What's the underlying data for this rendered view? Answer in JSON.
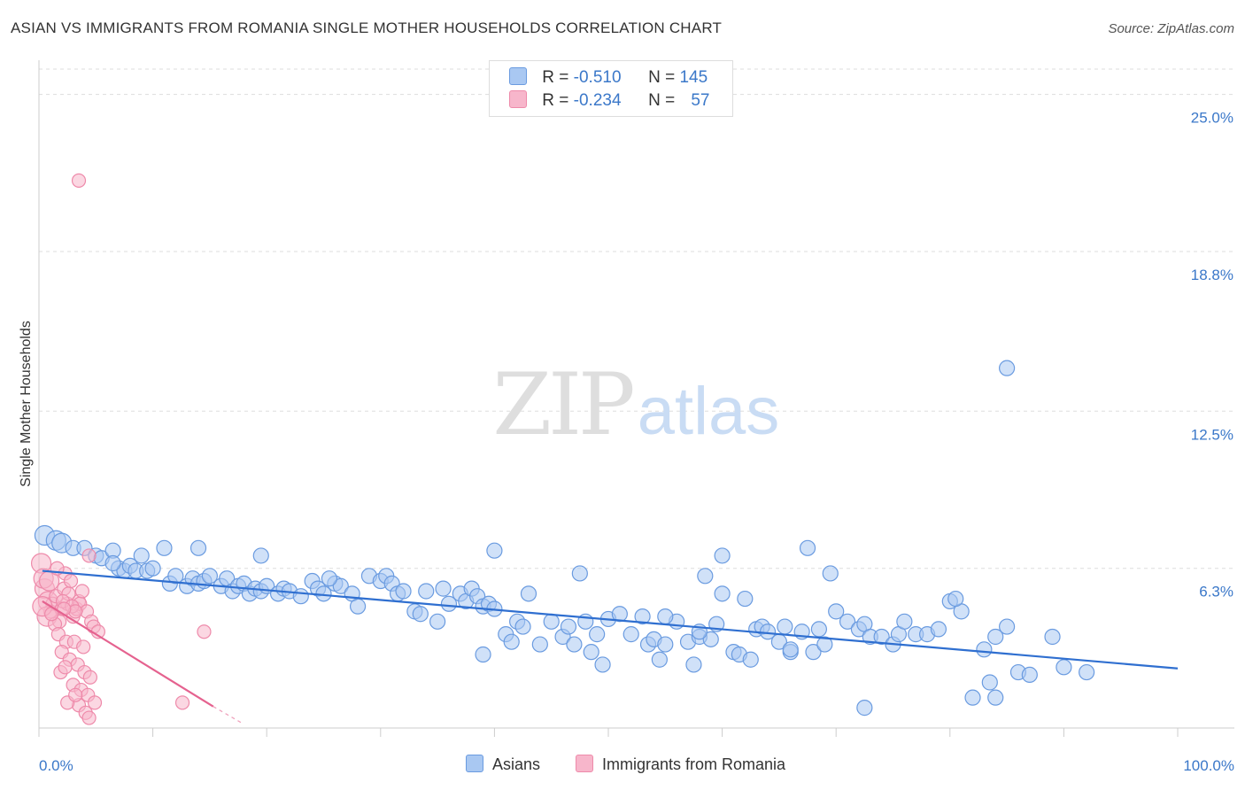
{
  "title": "ASIAN VS IMMIGRANTS FROM ROMANIA SINGLE MOTHER HOUSEHOLDS CORRELATION CHART",
  "source": "Source: ZipAtlas.com",
  "watermark": {
    "zip": "ZIP",
    "atlas": "atlas"
  },
  "legend_top": {
    "rows": [
      {
        "r_label": "R = ",
        "r_value": "-0.510",
        "n_label": "N = ",
        "n_value": "145",
        "color": "#a9c8f2"
      },
      {
        "r_label": "R = ",
        "r_value": "-0.234",
        "n_label": "N = ",
        "n_value": "57",
        "color": "#f7b6cb"
      }
    ]
  },
  "legend_bottom": [
    {
      "label": "Asians",
      "color": "#a9c8f2"
    },
    {
      "label": "Immigrants from Romania",
      "color": "#f7b6cb"
    }
  ],
  "chart_data": {
    "type": "scatter",
    "xlabel": "",
    "ylabel": "Single Mother Households",
    "xlim": [
      0,
      100
    ],
    "ylim": [
      0,
      26
    ],
    "x_tick_labels": [
      "0.0%",
      "100.0%"
    ],
    "y_ticks": [
      6.3,
      12.5,
      18.8,
      25.0
    ],
    "y_tick_labels": [
      "6.3%",
      "12.5%",
      "18.8%",
      "25.0%"
    ],
    "grid": "horizontal dashed",
    "series": [
      {
        "name": "Asians",
        "color": "#6a9be0",
        "fill": "#a9c8f2",
        "trend": {
          "x1": 0.3,
          "y1": 6.2,
          "x2": 100,
          "y2": 2.35,
          "color": "#2f6fd0"
        },
        "points": [
          [
            0.5,
            7.6
          ],
          [
            1.5,
            7.4
          ],
          [
            2,
            7.3
          ],
          [
            3,
            7.1
          ],
          [
            4,
            7.1
          ],
          [
            5,
            6.8
          ],
          [
            5.5,
            6.7
          ],
          [
            6.5,
            7.0
          ],
          [
            7,
            6.3
          ],
          [
            7.5,
            6.2
          ],
          [
            8,
            6.4
          ],
          [
            6.5,
            6.5
          ],
          [
            9,
            6.8
          ],
          [
            8.5,
            6.2
          ],
          [
            9.5,
            6.2
          ],
          [
            10,
            6.3
          ],
          [
            11,
            7.1
          ],
          [
            11.5,
            5.7
          ],
          [
            12,
            6.0
          ],
          [
            13,
            5.6
          ],
          [
            13.5,
            5.9
          ],
          [
            14,
            5.7
          ],
          [
            14.5,
            5.8
          ],
          [
            15,
            6.0
          ],
          [
            16,
            5.6
          ],
          [
            16.5,
            5.9
          ],
          [
            17,
            5.4
          ],
          [
            17.5,
            5.6
          ],
          [
            18,
            5.7
          ],
          [
            18.5,
            5.3
          ],
          [
            19,
            5.5
          ],
          [
            19.5,
            5.4
          ],
          [
            20,
            5.6
          ],
          [
            21,
            5.3
          ],
          [
            21.5,
            5.5
          ],
          [
            22,
            5.4
          ],
          [
            23,
            5.2
          ],
          [
            24,
            5.8
          ],
          [
            24.5,
            5.5
          ],
          [
            25,
            5.3
          ],
          [
            26,
            5.7
          ],
          [
            26.5,
            5.6
          ],
          [
            27.5,
            5.3
          ],
          [
            28,
            4.8
          ],
          [
            29,
            6.0
          ],
          [
            30,
            5.8
          ],
          [
            30.5,
            6.0
          ],
          [
            31,
            5.7
          ],
          [
            31.5,
            5.3
          ],
          [
            32,
            5.4
          ],
          [
            33,
            4.6
          ],
          [
            33.5,
            4.5
          ],
          [
            34,
            5.4
          ],
          [
            35,
            4.2
          ],
          [
            35.5,
            5.5
          ],
          [
            36,
            4.9
          ],
          [
            37,
            5.3
          ],
          [
            37.5,
            5.0
          ],
          [
            38,
            5.5
          ],
          [
            38.5,
            5.2
          ],
          [
            39,
            4.8
          ],
          [
            39.5,
            4.9
          ],
          [
            40,
            4.7
          ],
          [
            41,
            3.7
          ],
          [
            41.5,
            3.4
          ],
          [
            42,
            4.2
          ],
          [
            42.5,
            4.0
          ],
          [
            43,
            5.3
          ],
          [
            44,
            3.3
          ],
          [
            45,
            4.2
          ],
          [
            46,
            3.6
          ],
          [
            46.5,
            4.0
          ],
          [
            47,
            3.3
          ],
          [
            48,
            4.2
          ],
          [
            48.5,
            3.0
          ],
          [
            49,
            3.7
          ],
          [
            50,
            4.3
          ],
          [
            51,
            4.5
          ],
          [
            52,
            3.7
          ],
          [
            53,
            4.4
          ],
          [
            53.5,
            3.3
          ],
          [
            54,
            3.5
          ],
          [
            55,
            3.3
          ],
          [
            56,
            4.2
          ],
          [
            57,
            3.4
          ],
          [
            58,
            3.6
          ],
          [
            59,
            3.5
          ],
          [
            59.5,
            4.1
          ],
          [
            60,
            5.3
          ],
          [
            61,
            3.0
          ],
          [
            61.5,
            2.9
          ],
          [
            62,
            5.1
          ],
          [
            63,
            3.9
          ],
          [
            63.5,
            4.0
          ],
          [
            64,
            3.8
          ],
          [
            65,
            3.4
          ],
          [
            65.5,
            4.0
          ],
          [
            66,
            3.0
          ],
          [
            67,
            3.8
          ],
          [
            68,
            3.0
          ],
          [
            68.5,
            3.9
          ],
          [
            69,
            3.3
          ],
          [
            70,
            4.6
          ],
          [
            71,
            4.2
          ],
          [
            72,
            3.9
          ],
          [
            72.5,
            4.1
          ],
          [
            73,
            3.6
          ],
          [
            74,
            3.6
          ],
          [
            75,
            3.3
          ],
          [
            75.5,
            3.7
          ],
          [
            76,
            4.2
          ],
          [
            77,
            3.7
          ],
          [
            78,
            3.7
          ],
          [
            79,
            3.9
          ],
          [
            80,
            5.0
          ],
          [
            81,
            4.6
          ],
          [
            82,
            1.2
          ],
          [
            83,
            3.1
          ],
          [
            83.5,
            1.8
          ],
          [
            84,
            3.6
          ],
          [
            85,
            4.0
          ],
          [
            86,
            2.2
          ],
          [
            87,
            2.1
          ],
          [
            89,
            3.6
          ],
          [
            49.5,
            2.5
          ],
          [
            54.5,
            2.7
          ],
          [
            57.5,
            2.5
          ],
          [
            58.5,
            6.0
          ],
          [
            67.5,
            7.1
          ],
          [
            69.5,
            6.1
          ],
          [
            85,
            14.2
          ],
          [
            60,
            6.8
          ],
          [
            47.5,
            6.1
          ],
          [
            40,
            7.0
          ],
          [
            14,
            7.1
          ],
          [
            19.5,
            6.8
          ],
          [
            25.5,
            5.9
          ],
          [
            39,
            2.9
          ],
          [
            58,
            3.8
          ],
          [
            66,
            3.1
          ],
          [
            84,
            1.2
          ],
          [
            90,
            2.4
          ],
          [
            92,
            2.2
          ],
          [
            80.5,
            5.1
          ],
          [
            72.5,
            0.8
          ],
          [
            62.5,
            2.7
          ],
          [
            55,
            4.4
          ]
        ]
      },
      {
        "name": "Immigrants from Romania",
        "color": "#ee8aaa",
        "fill": "#f7b6cb",
        "trend": {
          "x1": 0.3,
          "y1": 5.0,
          "x2": 15.3,
          "y2": 0.85,
          "color": "#e5628f",
          "dash_to": {
            "x": 17.8,
            "y": 0.2
          }
        },
        "points": [
          [
            0.2,
            6.5
          ],
          [
            0.5,
            5.5
          ],
          [
            0.8,
            5.0
          ],
          [
            1,
            4.6
          ],
          [
            1.2,
            4.9
          ],
          [
            1.5,
            5.2
          ],
          [
            2,
            4.7
          ],
          [
            2.2,
            5.5
          ],
          [
            2.5,
            4.9
          ],
          [
            3,
            4.4
          ],
          [
            3.3,
            4.7
          ],
          [
            3.5,
            5.0
          ],
          [
            0.4,
            5.9
          ],
          [
            0.7,
            4.4
          ],
          [
            1.8,
            4.2
          ],
          [
            2.3,
            6.1
          ],
          [
            2.8,
            5.8
          ],
          [
            3.6,
            4.9
          ],
          [
            4.2,
            4.6
          ],
          [
            4.6,
            4.2
          ],
          [
            1.4,
            4.1
          ],
          [
            2.6,
            5.3
          ],
          [
            0.9,
            5.8
          ],
          [
            1.6,
            6.3
          ],
          [
            2.1,
            5.0
          ],
          [
            0.3,
            4.8
          ],
          [
            1.1,
            4.5
          ],
          [
            2.9,
            4.8
          ],
          [
            3.8,
            5.4
          ],
          [
            4.8,
            4.0
          ],
          [
            5.2,
            3.8
          ],
          [
            1.7,
            3.7
          ],
          [
            2.4,
            3.4
          ],
          [
            3.1,
            3.4
          ],
          [
            3.9,
            3.2
          ],
          [
            2.0,
            3.0
          ],
          [
            2.7,
            2.7
          ],
          [
            3.4,
            2.5
          ],
          [
            4.0,
            2.2
          ],
          [
            4.5,
            2.0
          ],
          [
            3.0,
            1.7
          ],
          [
            3.7,
            1.5
          ],
          [
            4.3,
            1.3
          ],
          [
            4.9,
            1.0
          ],
          [
            3.5,
            0.9
          ],
          [
            4.1,
            0.6
          ],
          [
            4.4,
            0.4
          ],
          [
            2.5,
            1.0
          ],
          [
            3.2,
            1.3
          ],
          [
            1.9,
            2.2
          ],
          [
            2.3,
            2.4
          ],
          [
            12.6,
            1.0
          ],
          [
            14.5,
            3.8
          ],
          [
            3.5,
            21.6
          ],
          [
            4.4,
            6.8
          ],
          [
            3.2,
            4.6
          ],
          [
            2.2,
            4.7
          ]
        ]
      }
    ]
  }
}
